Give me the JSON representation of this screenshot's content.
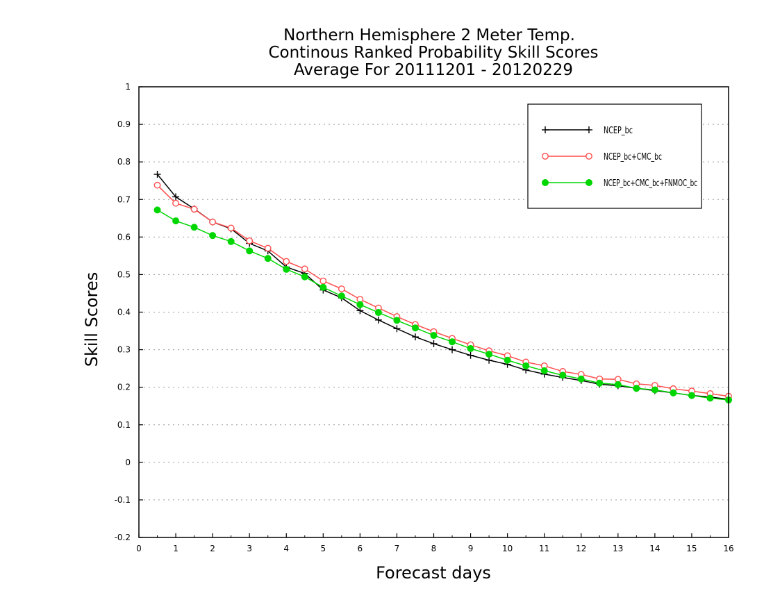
{
  "chart_data": {
    "type": "line",
    "title_lines": [
      "Northern Hemisphere 2 Meter Temp.",
      "Continous Ranked Probability Skill Scores",
      "Average For 20111201 - 20120229"
    ],
    "xlabel": "Forecast days",
    "ylabel": "Skill Scores",
    "xlim": [
      0,
      16
    ],
    "ylim": [
      -0.2,
      1
    ],
    "x_ticks": [
      0,
      1,
      2,
      3,
      4,
      5,
      6,
      7,
      8,
      9,
      10,
      11,
      12,
      13,
      14,
      15,
      16
    ],
    "x_tick_labels": [
      "0",
      "1",
      "2",
      "3",
      "4",
      "5",
      "6",
      "7",
      "8",
      "9",
      "10",
      "11",
      "12",
      "13",
      "14",
      "15",
      "16"
    ],
    "y_ticks": [
      -0.2,
      -0.1,
      0,
      0.1,
      0.2,
      0.3,
      0.4,
      0.5,
      0.6,
      0.7,
      0.8,
      0.9,
      1
    ],
    "y_tick_labels": [
      "-0.2",
      "-0.1",
      "0",
      "0.1",
      "0.2",
      "0.3",
      "0.4",
      "0.5",
      "0.6",
      "0.7",
      "0.8",
      "0.9",
      "1"
    ],
    "grid": "horizontal-dotted",
    "legend_position": "top-right",
    "x": [
      0.5,
      1,
      1.5,
      2,
      2.5,
      3,
      3.5,
      4,
      4.5,
      5,
      5.5,
      6,
      6.5,
      7,
      7.5,
      8,
      8.5,
      9,
      9.5,
      10,
      10.5,
      11,
      11.5,
      12,
      12.5,
      13,
      13.5,
      14,
      14.5,
      15,
      15.5,
      16
    ],
    "series": [
      {
        "name": "NCEP_bc",
        "color": "#000000",
        "marker": "plus",
        "values": [
          0.767,
          0.707,
          0.675,
          0.64,
          0.622,
          0.583,
          0.563,
          0.52,
          0.503,
          0.459,
          0.438,
          0.404,
          0.379,
          0.356,
          0.334,
          0.316,
          0.3,
          0.285,
          0.272,
          0.261,
          0.246,
          0.235,
          0.226,
          0.218,
          0.208,
          0.204,
          0.197,
          0.191,
          0.185,
          0.178,
          0.174,
          0.168
        ]
      },
      {
        "name": "NCEP_bc+CMC_bc",
        "color": "#ff4d4d",
        "marker": "open-circle",
        "values": [
          0.738,
          0.69,
          0.674,
          0.64,
          0.624,
          0.59,
          0.57,
          0.535,
          0.515,
          0.483,
          0.462,
          0.434,
          0.411,
          0.388,
          0.367,
          0.348,
          0.33,
          0.313,
          0.297,
          0.284,
          0.267,
          0.257,
          0.242,
          0.234,
          0.222,
          0.221,
          0.209,
          0.205,
          0.196,
          0.19,
          0.183,
          0.176
        ]
      },
      {
        "name": "NCEP_bc+CMC_bc+FNMOC_bc",
        "color": "#00d600",
        "marker": "filled-circle",
        "values": [
          0.672,
          0.643,
          0.626,
          0.604,
          0.588,
          0.563,
          0.543,
          0.514,
          0.494,
          0.466,
          0.443,
          0.42,
          0.399,
          0.378,
          0.358,
          0.338,
          0.321,
          0.303,
          0.288,
          0.272,
          0.257,
          0.244,
          0.232,
          0.222,
          0.211,
          0.207,
          0.197,
          0.193,
          0.185,
          0.178,
          0.171,
          0.166
        ]
      }
    ]
  }
}
